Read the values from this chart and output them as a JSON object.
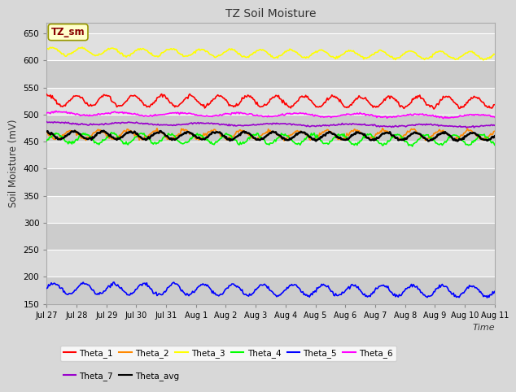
{
  "title": "TZ Soil Moisture",
  "xlabel": "Time",
  "ylabel": "Soil Moisture (mV)",
  "ylim": [
    150,
    670
  ],
  "yticks": [
    150,
    200,
    250,
    300,
    350,
    400,
    450,
    500,
    550,
    600,
    650
  ],
  "bg_color": "#d8d8d8",
  "plot_bg_color": "#d8d8d8",
  "band_color_dark": "#cccccc",
  "band_color_light": "#e0e0e0",
  "legend_label": "TZ_sm",
  "legend_box_facecolor": "#ffffcc",
  "legend_box_edgecolor": "#999900",
  "series_colors": {
    "Theta_1": "#ff0000",
    "Theta_2": "#ff8800",
    "Theta_3": "#ffff00",
    "Theta_4": "#00ff00",
    "Theta_5": "#0000ff",
    "Theta_6": "#ff00ff",
    "Theta_7": "#9900cc",
    "Theta_avg": "#000000"
  },
  "date_labels": [
    "Jul 27",
    "Jul 28",
    "Jul 29",
    "Jul 30",
    "Jul 31",
    "Aug 1",
    "Aug 2",
    "Aug 3",
    "Aug 4",
    "Aug 5",
    "Aug 6",
    "Aug 7",
    "Aug 8",
    "Aug 9",
    "Aug 10",
    "Aug 11"
  ],
  "n_points": 480,
  "n_days": 15
}
